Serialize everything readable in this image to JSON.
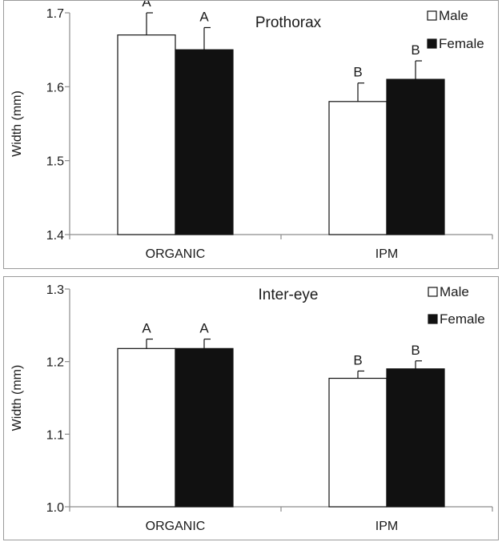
{
  "chart_data": [
    {
      "type": "bar",
      "title": "Prothorax",
      "ylabel": "Width (mm)",
      "xlabel": "",
      "categories": [
        "ORGANIC",
        "IPM"
      ],
      "ylim": [
        1.4,
        1.7
      ],
      "yticks": [
        1.4,
        1.5,
        1.6,
        1.7
      ],
      "ytick_labels": [
        "1.4",
        "1.5",
        "1.6",
        "1.7"
      ],
      "series": [
        {
          "name": "Male",
          "values": [
            1.67,
            1.58
          ],
          "errors": [
            0.03,
            0.025
          ],
          "letters": [
            "A",
            "B"
          ],
          "color": "#ffffff"
        },
        {
          "name": "Female",
          "values": [
            1.65,
            1.61
          ],
          "errors": [
            0.03,
            0.025
          ],
          "letters": [
            "A",
            "B"
          ],
          "color": "#111111"
        }
      ],
      "legend": "top-right",
      "grid": false
    },
    {
      "type": "bar",
      "title": "Inter-eye",
      "ylabel": "Width (mm)",
      "xlabel": "",
      "categories": [
        "ORGANIC",
        "IPM"
      ],
      "ylim": [
        1.0,
        1.3
      ],
      "yticks": [
        1.0,
        1.1,
        1.2,
        1.3
      ],
      "ytick_labels": [
        "1.0",
        "1.1",
        "1.2",
        "1.3"
      ],
      "series": [
        {
          "name": "Male",
          "values": [
            1.218,
            1.177
          ],
          "errors": [
            0.013,
            0.01
          ],
          "letters": [
            "A",
            "B"
          ],
          "color": "#ffffff"
        },
        {
          "name": "Female",
          "values": [
            1.218,
            1.19
          ],
          "errors": [
            0.013,
            0.011
          ],
          "letters": [
            "A",
            "B"
          ],
          "color": "#111111"
        }
      ],
      "legend": "top-right",
      "grid": false
    }
  ]
}
